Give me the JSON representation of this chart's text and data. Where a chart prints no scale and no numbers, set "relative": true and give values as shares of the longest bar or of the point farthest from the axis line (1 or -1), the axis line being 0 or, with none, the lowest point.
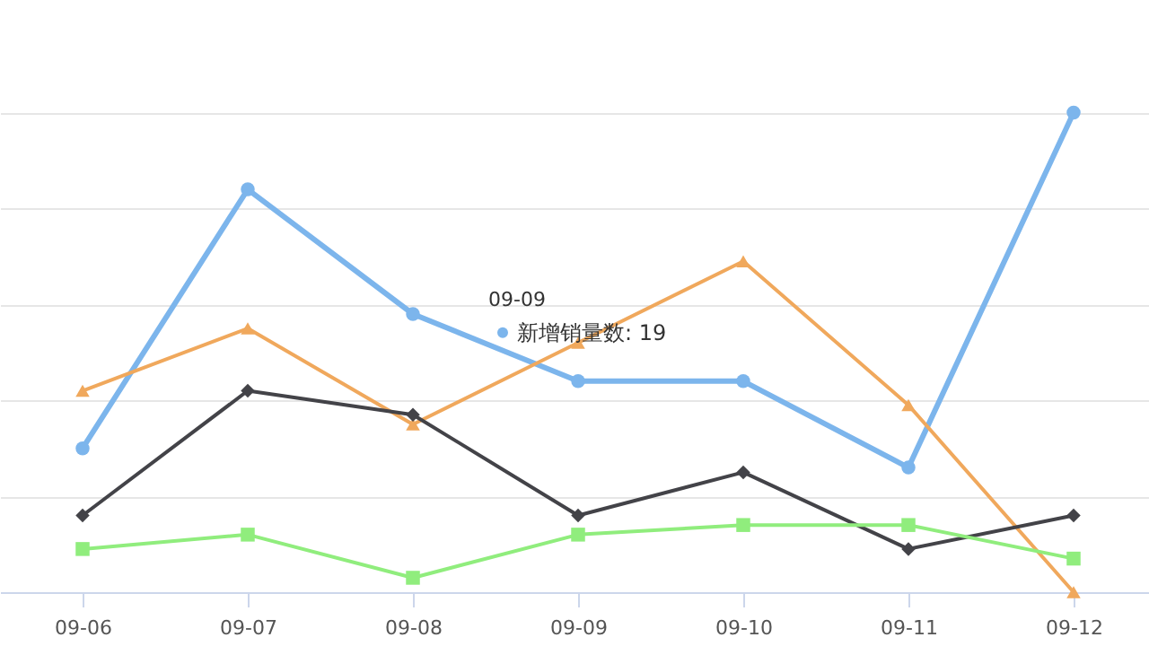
{
  "chart_data": {
    "type": "line",
    "relative": true,
    "categories": [
      "09-06",
      "09-07",
      "09-08",
      "09-09",
      "09-10",
      "09-11",
      "09-12"
    ],
    "series": [
      {
        "color": "#7cb5ec",
        "marker": "circle",
        "values": [
          0.3,
          0.84,
          0.58,
          0.44,
          0.44,
          0.26,
          1
        ]
      },
      {
        "color": "#f0a85c",
        "marker": "triangle",
        "values": [
          0.42,
          0.55,
          0.35,
          0.52,
          0.69,
          0.39,
          0
        ]
      },
      {
        "color": "#434348",
        "marker": "diamond",
        "values": [
          0.16,
          0.42,
          0.37,
          0.16,
          0.25,
          0.09,
          0.16
        ]
      },
      {
        "color": "#90ed7d",
        "marker": "square",
        "values": [
          0.09,
          0.12,
          0.03,
          0.12,
          0.14,
          0.14,
          0.07
        ]
      }
    ],
    "annotations": [
      "09-09",
      {
        "text": "新增销量数: 19",
        "x": "09-09",
        "y": 0.44
      }
    ],
    "grid": "y"
  }
}
